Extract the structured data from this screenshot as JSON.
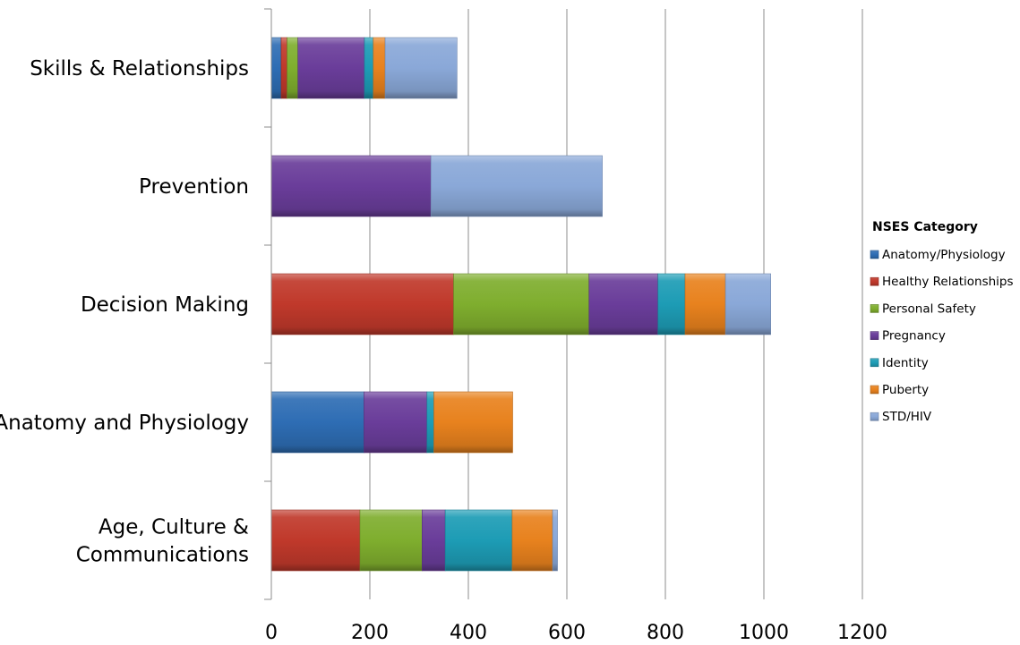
{
  "chart_data": {
    "type": "bar",
    "orientation": "horizontal",
    "stacked": true,
    "categories": [
      "Age, Culture & Communications",
      "Anatomy and Physiology",
      "Decision Making",
      "Prevention",
      "Skills & Relationships"
    ],
    "category_label_lines": [
      [
        "Age, Culture &",
        "Communications"
      ],
      [
        "Anatomy and Physiology"
      ],
      [
        "Decision Making"
      ],
      [
        "Prevention"
      ],
      [
        "Skills & Relationships"
      ]
    ],
    "series": [
      {
        "name": "Anatomy/Physiology",
        "color": "#2E6DB4",
        "values": [
          0,
          188,
          0,
          0,
          20
        ]
      },
      {
        "name": "Healthy Relationships",
        "color": "#C0392B",
        "values": [
          180,
          0,
          370,
          0,
          12
        ]
      },
      {
        "name": "Personal Safety",
        "color": "#7FAE2E",
        "values": [
          126,
          0,
          275,
          0,
          22
        ]
      },
      {
        "name": "Pregnancy",
        "color": "#6A3D9A",
        "values": [
          47,
          128,
          140,
          324,
          135
        ]
      },
      {
        "name": "Identity",
        "color": "#1D9CB5",
        "values": [
          136,
          14,
          55,
          0,
          18
        ]
      },
      {
        "name": "Puberty",
        "color": "#E8821E",
        "values": [
          82,
          160,
          82,
          0,
          24
        ]
      },
      {
        "name": "STD/HIV",
        "color": "#8AA8D8",
        "values": [
          10,
          0,
          92,
          348,
          146
        ]
      }
    ],
    "xlim": [
      0,
      1200
    ],
    "x_ticks": [
      "0",
      "200",
      "400",
      "600",
      "800",
      "1000",
      "1200"
    ],
    "grid": true,
    "legend": {
      "title": "NSES Category",
      "placement": "right"
    }
  }
}
